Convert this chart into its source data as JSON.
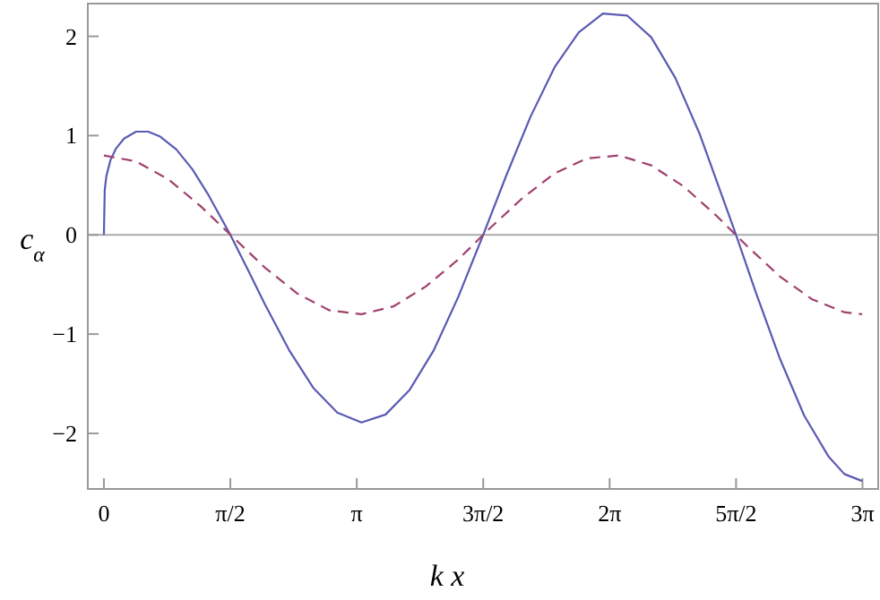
{
  "chart_data": {
    "type": "line",
    "xlabel": "k x",
    "ylabel": "c$_{α}$",
    "xlim": [
      -0.2,
      9.62
    ],
    "ylim": [
      -2.56,
      2.33
    ],
    "xticks": [
      {
        "value": 0,
        "label": "0"
      },
      {
        "value": 1.5708,
        "label": "π/2"
      },
      {
        "value": 3.1416,
        "label": "π"
      },
      {
        "value": 4.7124,
        "label": "3π/2"
      },
      {
        "value": 6.2832,
        "label": "2π"
      },
      {
        "value": 7.854,
        "label": "5π/2"
      },
      {
        "value": 9.4248,
        "label": "3π"
      }
    ],
    "yticks": [
      -2,
      -1,
      0,
      1,
      2
    ],
    "ref_lines": [
      {
        "axis": "y",
        "value": 0,
        "color": "#aaaaaa"
      }
    ],
    "series": [
      {
        "color": "#5a5ab4",
        "line_style": "solid",
        "x": [
          0,
          0.01,
          0.03,
          0.08,
          0.15,
          0.25,
          0.4,
          0.55,
          0.7,
          0.9,
          1.1,
          1.3,
          1.5708,
          1.8,
          2.0,
          2.3,
          2.6,
          2.9,
          3.2,
          3.5,
          3.8,
          4.1,
          4.4,
          4.7124,
          5.0,
          5.3,
          5.6,
          5.9,
          6.2,
          6.5,
          6.8,
          7.1,
          7.4,
          7.854,
          8.1,
          8.4,
          8.7,
          9.0,
          9.2,
          9.42
        ],
        "values": [
          0,
          0.45,
          0.59,
          0.75,
          0.87,
          0.97,
          1.04,
          1.04,
          0.99,
          0.86,
          0.66,
          0.4,
          0,
          -0.37,
          -0.7,
          -1.16,
          -1.54,
          -1.79,
          -1.89,
          -1.81,
          -1.56,
          -1.16,
          -0.63,
          0,
          0.6,
          1.19,
          1.69,
          2.04,
          2.23,
          2.21,
          1.99,
          1.58,
          1.02,
          0,
          -0.58,
          -1.25,
          -1.82,
          -2.23,
          -2.41,
          -2.48
        ]
      },
      {
        "color": "#a0406e",
        "line_style": "dashed",
        "x": [
          0,
          0.4,
          0.8,
          1.2,
          1.6,
          2.0,
          2.4,
          2.8,
          3.2,
          3.6,
          4.0,
          4.4,
          4.8,
          5.2,
          5.6,
          6.0,
          6.4,
          6.8,
          7.2,
          7.6,
          8.0,
          8.4,
          8.8,
          9.2,
          9.42
        ],
        "values": [
          0.8,
          0.74,
          0.56,
          0.29,
          -0.02,
          -0.33,
          -0.59,
          -0.76,
          -0.8,
          -0.72,
          -0.52,
          -0.25,
          0.07,
          0.37,
          0.62,
          0.77,
          0.8,
          0.7,
          0.49,
          0.2,
          -0.12,
          -0.42,
          -0.65,
          -0.78,
          -0.8
        ]
      }
    ]
  }
}
